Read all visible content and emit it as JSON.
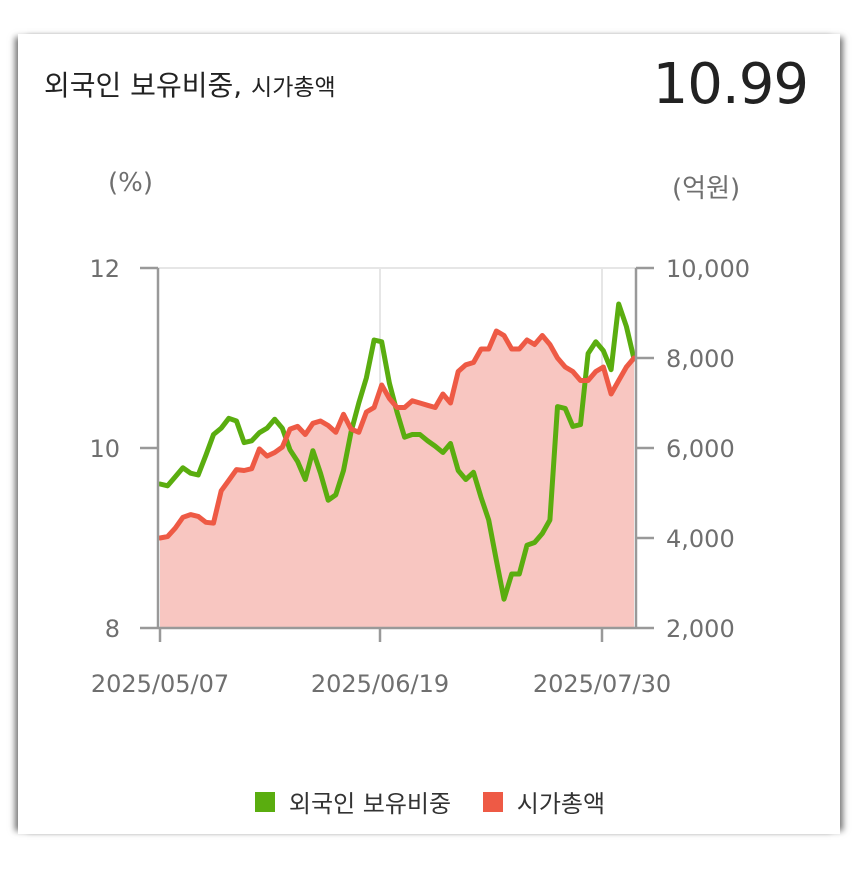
{
  "header": {
    "title_main": "외국인 보유비중,",
    "title_sub": "시가총액",
    "current_value": "10.99"
  },
  "units": {
    "left": "(%)",
    "right": "(억원)"
  },
  "legend": [
    {
      "label": "외국인 보유비중",
      "color": "#5aad0f"
    },
    {
      "label": "시가총액",
      "color": "#ee5a45"
    }
  ],
  "chart_data": {
    "type": "line",
    "x_tick_labels": [
      "2025/05/07",
      "2025/06/19",
      "2025/07/30"
    ],
    "y_left": {
      "ticks": [
        "8",
        "10",
        "12"
      ],
      "range": [
        8,
        12
      ]
    },
    "y_right": {
      "ticks": [
        "2,000",
        "4,000",
        "6,000",
        "8,000",
        "10,000"
      ],
      "range": [
        2000,
        10000
      ]
    },
    "grid": true,
    "series": [
      {
        "name": "외국인 보유비중",
        "axis": "left",
        "color": "#5aad0f",
        "values": [
          9.6,
          9.58,
          9.68,
          9.78,
          9.72,
          9.7,
          9.92,
          10.15,
          10.22,
          10.33,
          10.3,
          10.06,
          10.08,
          10.17,
          10.22,
          10.32,
          10.22,
          9.98,
          9.85,
          9.65,
          9.97,
          9.72,
          9.42,
          9.48,
          9.75,
          10.18,
          10.5,
          10.78,
          11.2,
          11.18,
          10.72,
          10.4,
          10.12,
          10.15,
          10.15,
          10.08,
          10.02,
          9.95,
          10.05,
          9.75,
          9.65,
          9.73,
          9.45,
          9.2,
          8.75,
          8.32,
          8.6,
          8.6,
          8.92,
          8.95,
          9.05,
          9.2,
          10.46,
          10.44,
          10.24,
          10.26,
          11.05,
          11.18,
          11.08,
          10.87,
          11.6,
          11.35,
          10.99
        ]
      },
      {
        "name": "시가총액",
        "axis": "right",
        "color": "#ee5a45",
        "fill": "#f8c6c1",
        "values": [
          4000,
          4030,
          4220,
          4460,
          4520,
          4480,
          4350,
          4330,
          5050,
          5280,
          5520,
          5500,
          5540,
          5980,
          5820,
          5900,
          6020,
          6420,
          6480,
          6300,
          6550,
          6600,
          6500,
          6350,
          6750,
          6420,
          6350,
          6800,
          6900,
          7400,
          7100,
          6900,
          6900,
          7050,
          7000,
          6950,
          6900,
          7200,
          7000,
          7700,
          7850,
          7900,
          8200,
          8200,
          8600,
          8500,
          8200,
          8200,
          8400,
          8300,
          8500,
          8300,
          8000,
          7800,
          7700,
          7500,
          7500,
          7700,
          7800,
          7200,
          7500,
          7800,
          8000
        ]
      }
    ]
  }
}
